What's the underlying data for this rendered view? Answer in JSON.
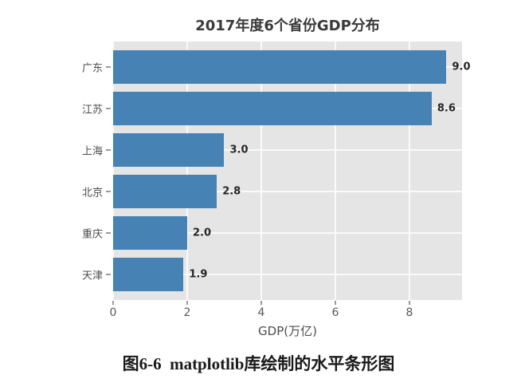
{
  "chart_data": {
    "type": "bar",
    "orientation": "horizontal",
    "title": "2017年度6个省份GDP分布",
    "categories": [
      "广东",
      "江苏",
      "上海",
      "北京",
      "重庆",
      "天津"
    ],
    "values": [
      9.0,
      8.6,
      3.0,
      2.8,
      2.0,
      1.9
    ],
    "value_labels": [
      "9.0",
      "8.6",
      "3.0",
      "2.8",
      "2.0",
      "1.9"
    ],
    "xlabel": "GDP(万亿)",
    "ylabel": "",
    "xlim": [
      0,
      9.42
    ],
    "xticks": [
      0,
      2,
      4,
      6,
      8
    ],
    "grid": true,
    "legend": "none",
    "style": {
      "bar_color": "#4682b4",
      "plot_background": "#e5e5e5",
      "grid_color": "#fafafa",
      "tick_label_color": "#595959",
      "title_color": "#3a3a3a",
      "value_label_color": "#262626"
    }
  },
  "caption": "图6-6  matplotlib库绘制的水平条形图"
}
